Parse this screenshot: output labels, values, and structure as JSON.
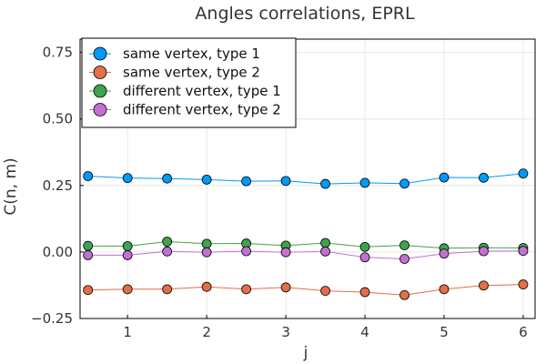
{
  "chart_data": {
    "type": "line",
    "title": "Angles correlations, EPRL",
    "xlabel": "j",
    "ylabel": "C(n, m)",
    "xlim": [
      0.4,
      6.15
    ],
    "ylim": [
      -0.25,
      0.8
    ],
    "xticks": [
      1,
      2,
      3,
      4,
      5,
      6
    ],
    "xtick_labels": [
      "1",
      "2",
      "3",
      "4",
      "5",
      "6"
    ],
    "yticks": [
      -0.25,
      0,
      0.25,
      0.5,
      0.75
    ],
    "ytick_labels": [
      "−0.25",
      "0.00",
      "0.25",
      "0.50",
      "0.75"
    ],
    "grid": true,
    "legend_position": "top-left",
    "x": [
      0.5,
      1,
      1.5,
      2,
      2.5,
      3,
      3.5,
      4,
      4.5,
      5,
      5.5,
      6
    ],
    "series": [
      {
        "name": "same vertex, type 1",
        "color": "#009af9",
        "values": [
          0.285,
          0.278,
          0.276,
          0.272,
          0.266,
          0.267,
          0.256,
          0.26,
          0.257,
          0.28,
          0.279,
          0.295
        ]
      },
      {
        "name": "same vertex, type 2",
        "color": "#e26f46",
        "values": [
          -0.143,
          -0.14,
          -0.14,
          -0.131,
          -0.14,
          -0.133,
          -0.146,
          -0.151,
          -0.162,
          -0.14,
          -0.126,
          -0.122
        ]
      },
      {
        "name": "different vertex, type 1",
        "color": "#3da44d",
        "values": [
          0.023,
          0.022,
          0.039,
          0.031,
          0.032,
          0.024,
          0.034,
          0.019,
          0.025,
          0.014,
          0.016,
          0.015
        ]
      },
      {
        "name": "different vertex, type 2",
        "color": "#c271d2",
        "values": [
          -0.012,
          -0.012,
          0.002,
          -0.001,
          0.003,
          -0.001,
          0.002,
          -0.02,
          -0.026,
          -0.006,
          0.003,
          0.004
        ]
      }
    ]
  }
}
